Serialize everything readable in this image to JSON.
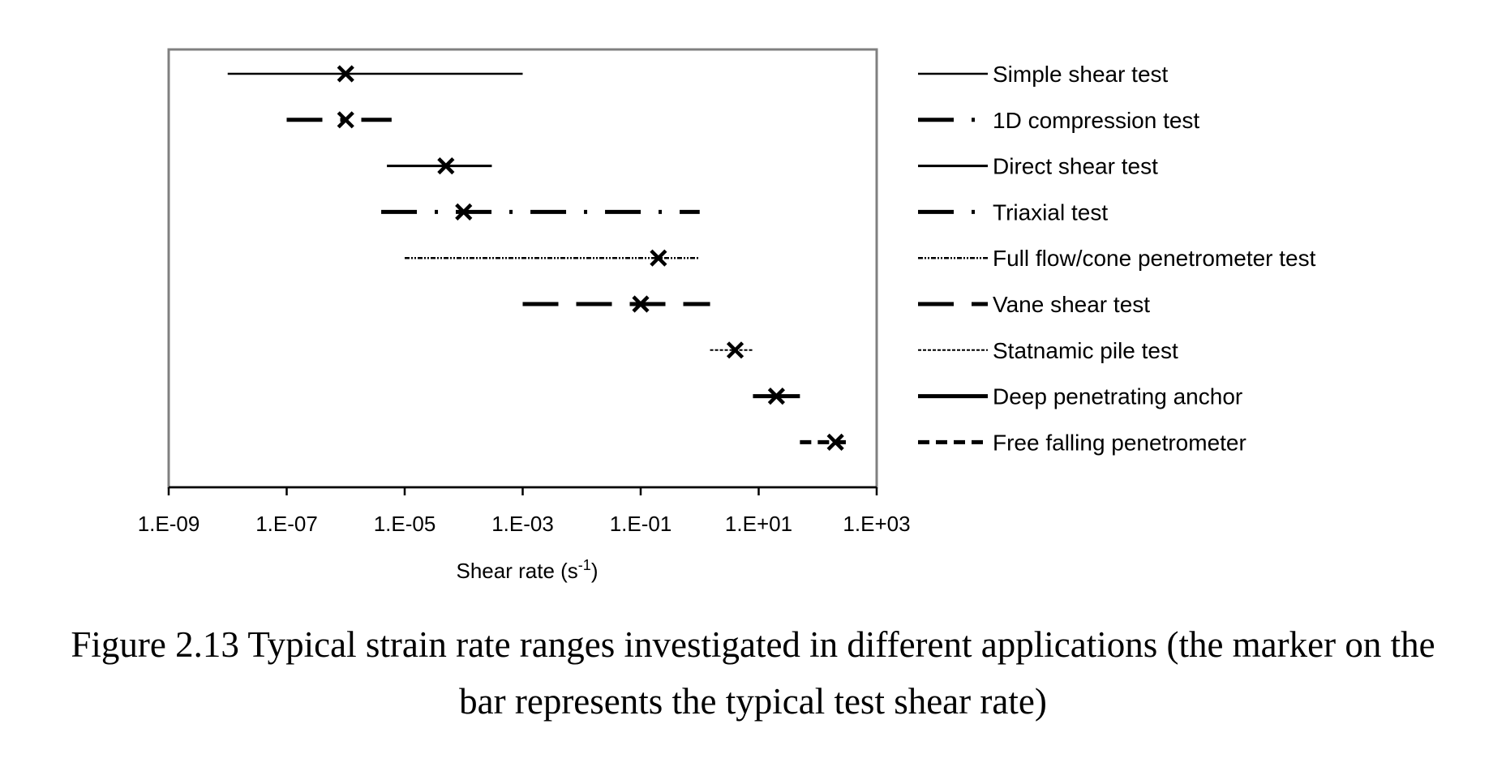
{
  "chart_data": {
    "type": "range",
    "xlabel": "Shear rate (s",
    "xlabel_superscript": "-1",
    "xlabel_suffix": ")",
    "x_scale": "log",
    "xlim": [
      1e-09,
      1000
    ],
    "x_ticks": [
      1e-09,
      1e-07,
      1e-05,
      0.001,
      0.1,
      10,
      1000
    ],
    "x_tick_labels": [
      "1.E-09",
      "1.E-07",
      "1.E-05",
      "1.E-03",
      "1.E-01",
      "1.E+01",
      "1.E+03"
    ],
    "legend_placement": "right",
    "grid": false,
    "series": [
      {
        "name": "Simple shear test",
        "min": 1e-08,
        "max": 0.001,
        "typical": 1e-06,
        "style": "thin-solid",
        "color": "#000000"
      },
      {
        "name": "1D compression test",
        "min": 1e-07,
        "max": 6e-06,
        "typical": 1e-06,
        "style": "long-dash-dot",
        "color": "#000000"
      },
      {
        "name": "Direct shear test",
        "min": 5e-06,
        "max": 0.0003,
        "typical": 5e-05,
        "style": "solid",
        "color": "#000000"
      },
      {
        "name": "Triaxial test",
        "min": 4e-06,
        "max": 1,
        "typical": 0.0001,
        "style": "long-dash-dot",
        "color": "#000000"
      },
      {
        "name": "Full flow/cone penetrometer test",
        "min": 1e-05,
        "max": 1,
        "typical": 0.2,
        "style": "dash-dot-dot-thin",
        "color": "#000000"
      },
      {
        "name": "Vane shear test",
        "min": 0.001,
        "max": 1.5,
        "typical": 0.1,
        "style": "long-dash",
        "color": "#000000"
      },
      {
        "name": "Statnamic pile test",
        "min": 1.5,
        "max": 8,
        "typical": 4,
        "style": "fine-dash",
        "color": "#000000"
      },
      {
        "name": "Deep penetrating anchor",
        "min": 8,
        "max": 50,
        "typical": 20,
        "style": "thick-solid",
        "color": "#000000"
      },
      {
        "name": "Free falling penetrometer",
        "min": 50,
        "max": 300,
        "typical": 200,
        "style": "short-dash",
        "color": "#000000"
      }
    ]
  },
  "caption": {
    "line1": "Figure 2.13 Typical strain rate ranges investigated in different applications (the marker on the",
    "line2": "bar represents the typical test shear rate)"
  }
}
